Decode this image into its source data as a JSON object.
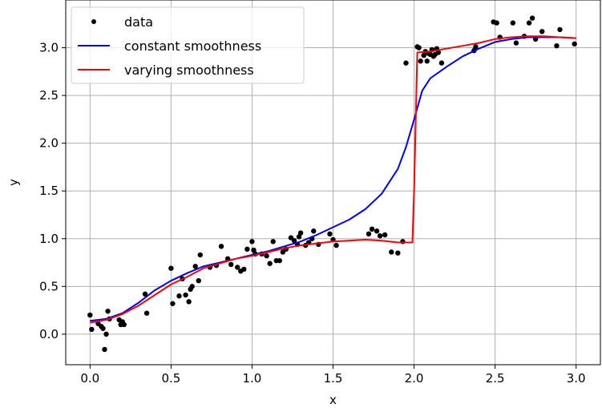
{
  "chart_data": {
    "type": "line",
    "title": "",
    "xlabel": "x",
    "ylabel": "y",
    "xlim": [
      -0.15,
      3.15
    ],
    "ylim": [
      -0.32,
      3.5
    ],
    "grid": true,
    "legend_placement": "top-left",
    "x_ticks": [
      "0.0",
      "0.5",
      "1.0",
      "1.5",
      "2.0",
      "2.5",
      "3.0"
    ],
    "y_ticks": [
      "0.0",
      "0.5",
      "1.0",
      "1.5",
      "2.0",
      "2.5",
      "3.0"
    ],
    "series": [
      {
        "name": "data",
        "kind": "scatter",
        "color": "#000000",
        "x": [
          0.0,
          0.01,
          0.05,
          0.07,
          0.08,
          0.09,
          0.1,
          0.11,
          0.12,
          0.18,
          0.19,
          0.2,
          0.21,
          0.34,
          0.35,
          0.5,
          0.51,
          0.55,
          0.57,
          0.59,
          0.61,
          0.62,
          0.63,
          0.65,
          0.67,
          0.68,
          0.74,
          0.78,
          0.81,
          0.85,
          0.87,
          0.91,
          0.93,
          0.95,
          0.97,
          1.0,
          1.01,
          1.02,
          1.06,
          1.09,
          1.11,
          1.13,
          1.15,
          1.17,
          1.19,
          1.21,
          1.24,
          1.26,
          1.28,
          1.29,
          1.3,
          1.33,
          1.35,
          1.37,
          1.38,
          1.41,
          1.48,
          1.5,
          1.52,
          1.72,
          1.74,
          1.77,
          1.79,
          1.82,
          1.86,
          1.9,
          1.93,
          1.95,
          2.02,
          2.03,
          2.04,
          2.06,
          2.07,
          2.08,
          2.09,
          2.1,
          2.11,
          2.12,
          2.13,
          2.14,
          2.15,
          2.17,
          2.37,
          2.38,
          2.49,
          2.51,
          2.53,
          2.61,
          2.63,
          2.68,
          2.71,
          2.73,
          2.75,
          2.79,
          2.88,
          2.9,
          2.99
        ],
        "y": [
          0.2,
          0.05,
          0.11,
          0.08,
          0.06,
          -0.16,
          0.0,
          0.24,
          0.16,
          0.15,
          0.1,
          0.13,
          0.1,
          0.42,
          0.22,
          0.69,
          0.32,
          0.4,
          0.58,
          0.41,
          0.34,
          0.47,
          0.5,
          0.71,
          0.56,
          0.83,
          0.7,
          0.72,
          0.92,
          0.79,
          0.73,
          0.7,
          0.66,
          0.68,
          0.89,
          0.97,
          0.88,
          0.84,
          0.84,
          0.82,
          0.74,
          0.97,
          0.77,
          0.77,
          0.86,
          0.89,
          1.01,
          0.98,
          0.94,
          1.02,
          1.06,
          0.93,
          0.96,
          1.0,
          1.08,
          0.94,
          1.05,
          0.99,
          0.93,
          1.05,
          1.1,
          1.08,
          1.03,
          1.04,
          0.86,
          0.85,
          0.97,
          2.84,
          3.01,
          3.0,
          2.86,
          2.92,
          2.96,
          2.86,
          2.94,
          2.93,
          2.98,
          2.91,
          2.93,
          2.99,
          2.95,
          2.84,
          2.97,
          3.01,
          3.27,
          3.26,
          3.11,
          3.26,
          3.05,
          3.12,
          3.26,
          3.31,
          3.09,
          3.17,
          3.02,
          3.19,
          3.04
        ]
      },
      {
        "name": "constant smoothness",
        "kind": "line",
        "color": "#0000ff",
        "x": [
          0.0,
          0.1,
          0.2,
          0.3,
          0.4,
          0.5,
          0.6,
          0.7,
          0.8,
          0.9,
          1.0,
          1.1,
          1.2,
          1.3,
          1.4,
          1.5,
          1.6,
          1.7,
          1.8,
          1.9,
          1.95,
          2.0,
          2.05,
          2.1,
          2.2,
          2.3,
          2.4,
          2.5,
          2.6,
          2.7,
          2.8,
          2.9,
          3.0
        ],
        "y": [
          0.14,
          0.16,
          0.22,
          0.33,
          0.46,
          0.56,
          0.64,
          0.71,
          0.75,
          0.79,
          0.83,
          0.87,
          0.92,
          0.97,
          1.04,
          1.12,
          1.2,
          1.31,
          1.47,
          1.73,
          1.96,
          2.25,
          2.55,
          2.68,
          2.8,
          2.91,
          2.99,
          3.06,
          3.09,
          3.11,
          3.11,
          3.11,
          3.1
        ]
      },
      {
        "name": "varying smoothness",
        "kind": "line",
        "color": "#ff0000",
        "x": [
          0.0,
          0.1,
          0.2,
          0.3,
          0.4,
          0.5,
          0.6,
          0.7,
          0.8,
          0.9,
          1.0,
          1.1,
          1.2,
          1.3,
          1.4,
          1.5,
          1.6,
          1.7,
          1.8,
          1.9,
          1.99,
          2.0,
          2.02,
          2.1,
          2.2,
          2.3,
          2.4,
          2.5,
          2.6,
          2.7,
          2.8,
          2.9,
          3.0
        ],
        "y": [
          0.12,
          0.15,
          0.21,
          0.3,
          0.41,
          0.52,
          0.6,
          0.69,
          0.74,
          0.79,
          0.82,
          0.86,
          0.9,
          0.93,
          0.95,
          0.97,
          0.98,
          0.99,
          0.98,
          0.96,
          0.96,
          1.5,
          2.95,
          2.96,
          2.99,
          3.02,
          3.05,
          3.09,
          3.11,
          3.12,
          3.12,
          3.11,
          3.1
        ]
      }
    ]
  }
}
